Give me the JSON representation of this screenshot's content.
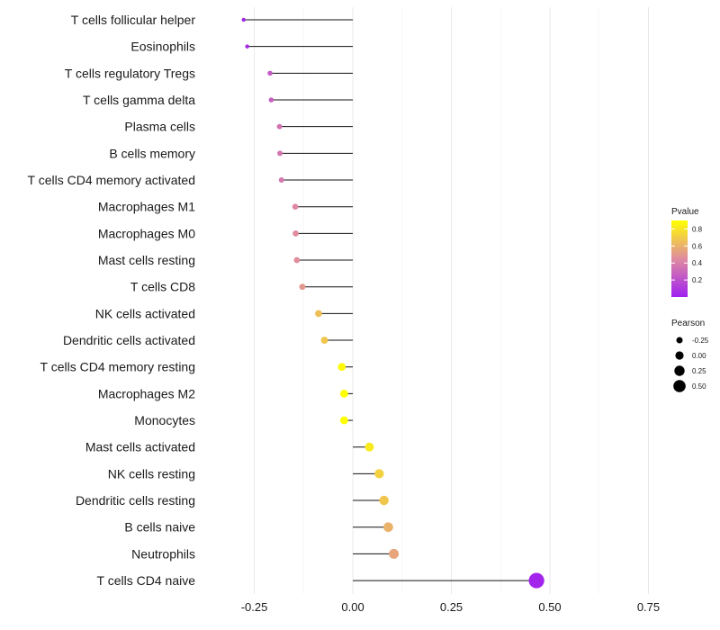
{
  "chart_data": {
    "type": "lollipop",
    "title": "",
    "xlabel": "",
    "ylabel": "",
    "xlim": [
      -0.37,
      0.79
    ],
    "x_ticks": [
      -0.25,
      0.0,
      0.25,
      0.5,
      0.75
    ],
    "x_tick_labels": [
      "-0.25",
      "0.00",
      "0.25",
      "0.50",
      "0.75"
    ],
    "grid": true,
    "categories": [
      "T cells follicular helper",
      "Eosinophils",
      "T cells regulatory  Tregs",
      "T cells gamma delta",
      "Plasma cells",
      "B cells memory",
      "T cells CD4 memory activated",
      "Macrophages M1",
      "Macrophages M0",
      "Mast cells resting",
      "T cells CD8",
      "NK cells activated",
      "Dendritic cells activated",
      "T cells CD4 memory resting",
      "Macrophages M2",
      "Monocytes",
      "Mast cells activated",
      "NK cells resting",
      "Dendritic cells resting",
      "B cells naive",
      "Neutrophils",
      "T cells CD4 naive"
    ],
    "pearson": [
      -0.277,
      -0.268,
      -0.21,
      -0.207,
      -0.186,
      -0.185,
      -0.181,
      -0.146,
      -0.145,
      -0.142,
      -0.128,
      -0.087,
      -0.072,
      -0.028,
      -0.022,
      -0.022,
      0.042,
      0.067,
      0.079,
      0.09,
      0.104,
      0.466
    ],
    "pvalue": [
      0.02,
      0.05,
      0.25,
      0.27,
      0.35,
      0.36,
      0.37,
      0.44,
      0.45,
      0.46,
      0.5,
      0.65,
      0.68,
      0.88,
      0.9,
      0.9,
      0.82,
      0.72,
      0.68,
      0.6,
      0.55,
      0.02
    ],
    "color_legend": {
      "title": "Pvalue",
      "ticks": [
        0.2,
        0.4,
        0.6,
        0.8
      ],
      "tick_labels": [
        "0.2",
        "0.4",
        "0.6",
        "0.8"
      ],
      "range": [
        0.0,
        0.9
      ],
      "low_color": "#a020f0",
      "mid_color": "#e08ba0",
      "high_color": "#ffff00"
    },
    "size_legend": {
      "title": "Pearson",
      "values": [
        -0.25,
        0.0,
        0.25,
        0.5
      ],
      "labels": [
        "-0.25",
        "0.00",
        "0.25",
        "0.50"
      ]
    },
    "legend_position": "right"
  }
}
